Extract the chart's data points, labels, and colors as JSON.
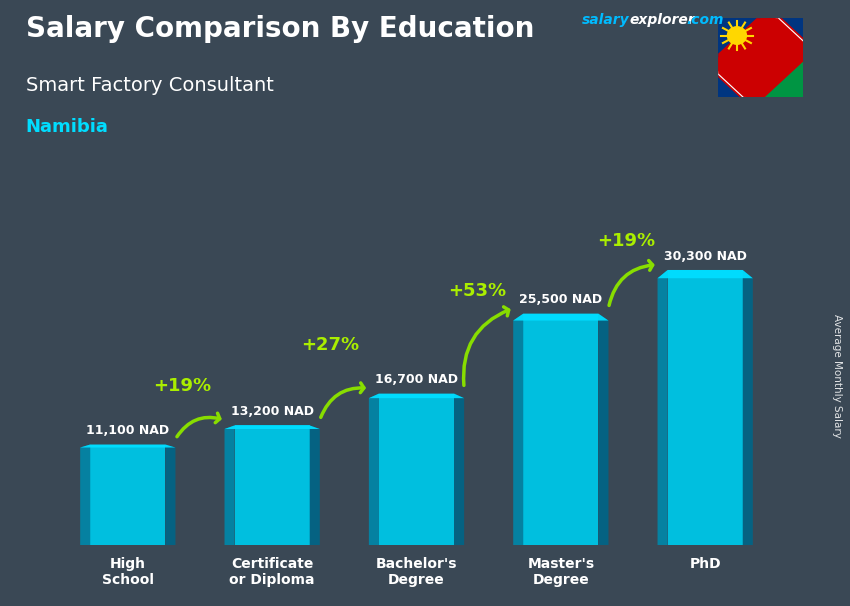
{
  "title_main": "Salary Comparison By Education",
  "subtitle": "Smart Factory Consultant",
  "country": "Namibia",
  "ylabel": "Average Monthly Salary",
  "categories": [
    "High\nSchool",
    "Certificate\nor Diploma",
    "Bachelor's\nDegree",
    "Master's\nDegree",
    "PhD"
  ],
  "values": [
    11100,
    13200,
    16700,
    25500,
    30300
  ],
  "value_labels": [
    "11,100 NAD",
    "13,200 NAD",
    "16,700 NAD",
    "25,500 NAD",
    "30,300 NAD"
  ],
  "pct_labels": [
    "+19%",
    "+27%",
    "+53%",
    "+19%"
  ],
  "bar_color_face": "#00BFDF",
  "bar_color_left": "#0088AA",
  "bar_color_right": "#006688",
  "bar_color_top": "#00DDFF",
  "bg_color": "#3a4855",
  "title_color": "#FFFFFF",
  "subtitle_color": "#FFFFFF",
  "country_color": "#00DDFF",
  "pct_color": "#AAEE00",
  "value_label_color": "#FFFFFF",
  "arrow_color": "#88DD00",
  "watermark_salary_color": "#00BBFF",
  "watermark_explorer_color": "#FFFFFF",
  "figsize": [
    8.5,
    6.06
  ],
  "dpi": 100
}
